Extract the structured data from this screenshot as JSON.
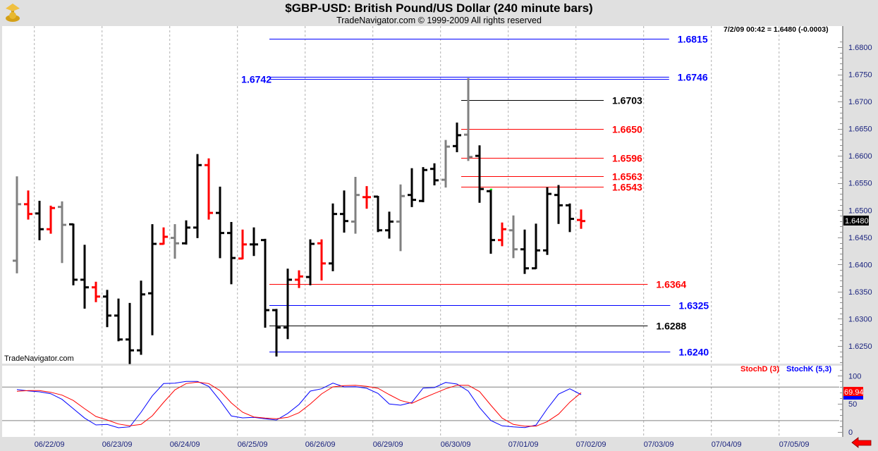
{
  "header": {
    "title": "$GBP-USD:  British Pound/US Dollar  (240 minute bars)",
    "subtitle": "TradeNavigator.com © 1999-2009 All rights reserved",
    "readout": "7/2/09 00:42 = 1.6480 (-0.0003)",
    "watermark": "TradeNavigator.com",
    "logo_icon": "gold-trophy-icon"
  },
  "colors": {
    "up_bar": "#000000",
    "gray_bar": "#808080",
    "red_bar": "#ff0000",
    "blue_level": "#0000ff",
    "red_level": "#ff0000",
    "black_level": "#000000",
    "stoch_k": "#0000ff",
    "stoch_d": "#ff0000"
  },
  "chart_data": [
    {
      "type": "ohlc",
      "title": "$GBP-USD:  British Pound/US Dollar  (240 minute bars)",
      "ylim": [
        1.6215,
        1.682
      ],
      "y_ticks": [
        "1.6250",
        "1.6300",
        "1.6350",
        "1.6400",
        "1.6450",
        "1.6500",
        "1.6550",
        "1.6600",
        "1.6650",
        "1.6700",
        "1.6750",
        "1.6800"
      ],
      "x_ticks": [
        "06/22/09",
        "06/23/09",
        "06/24/09",
        "06/25/09",
        "06/26/09",
        "06/29/09",
        "06/30/09",
        "07/01/09",
        "07/02/09",
        "07/03/09",
        "07/04/09",
        "07/05/09"
      ],
      "bars_per_day": 6,
      "grid": "vertical dashed",
      "last_price": "1.6480",
      "bars": [
        {
          "o": 1.6407,
          "h": 1.6561,
          "l": 1.6385,
          "c": 1.6511,
          "color": "gray"
        },
        {
          "o": 1.6511,
          "h": 1.6535,
          "l": 1.6484,
          "c": 1.6493,
          "color": "red"
        },
        {
          "o": 1.6494,
          "h": 1.6516,
          "l": 1.6446,
          "c": 1.6465,
          "color": "black"
        },
        {
          "o": 1.6465,
          "h": 1.6507,
          "l": 1.6458,
          "c": 1.6504,
          "color": "red"
        },
        {
          "o": 1.6506,
          "h": 1.6515,
          "l": 1.6404,
          "c": 1.6473,
          "color": "gray"
        },
        {
          "o": 1.6474,
          "h": 1.6474,
          "l": 1.6363,
          "c": 1.6372,
          "color": "black"
        },
        {
          "o": 1.6372,
          "h": 1.6435,
          "l": 1.632,
          "c": 1.6358,
          "color": "black"
        },
        {
          "o": 1.6358,
          "h": 1.6367,
          "l": 1.6332,
          "c": 1.6341,
          "color": "red"
        },
        {
          "o": 1.6341,
          "h": 1.6352,
          "l": 1.6286,
          "c": 1.6306,
          "color": "black"
        },
        {
          "o": 1.6306,
          "h": 1.6336,
          "l": 1.626,
          "c": 1.6262,
          "color": "black"
        },
        {
          "o": 1.6262,
          "h": 1.6328,
          "l": 1.6218,
          "c": 1.6242,
          "color": "black"
        },
        {
          "o": 1.6242,
          "h": 1.6369,
          "l": 1.6235,
          "c": 1.6345,
          "color": "black"
        },
        {
          "o": 1.6347,
          "h": 1.6473,
          "l": 1.6271,
          "c": 1.6438,
          "color": "black"
        },
        {
          "o": 1.6438,
          "h": 1.6467,
          "l": 1.6438,
          "c": 1.6451,
          "color": "red"
        },
        {
          "o": 1.6449,
          "h": 1.6473,
          "l": 1.6412,
          "c": 1.6439,
          "color": "gray"
        },
        {
          "o": 1.6439,
          "h": 1.648,
          "l": 1.6438,
          "c": 1.6468,
          "color": "black"
        },
        {
          "o": 1.6468,
          "h": 1.6602,
          "l": 1.645,
          "c": 1.6583,
          "color": "black"
        },
        {
          "o": 1.6583,
          "h": 1.6594,
          "l": 1.6484,
          "c": 1.6495,
          "color": "red"
        },
        {
          "o": 1.6495,
          "h": 1.6542,
          "l": 1.6413,
          "c": 1.6458,
          "color": "black"
        },
        {
          "o": 1.6458,
          "h": 1.6477,
          "l": 1.6365,
          "c": 1.6412,
          "color": "black"
        },
        {
          "o": 1.6411,
          "h": 1.6463,
          "l": 1.6411,
          "c": 1.6437,
          "color": "red"
        },
        {
          "o": 1.6437,
          "h": 1.6467,
          "l": 1.6417,
          "c": 1.6437,
          "color": "black"
        },
        {
          "o": 1.6445,
          "h": 1.6446,
          "l": 1.6285,
          "c": 1.6316,
          "color": "black"
        },
        {
          "o": 1.6316,
          "h": 1.6317,
          "l": 1.6232,
          "c": 1.6284,
          "color": "black"
        },
        {
          "o": 1.6284,
          "h": 1.6391,
          "l": 1.6264,
          "c": 1.6372,
          "color": "black"
        },
        {
          "o": 1.6372,
          "h": 1.6388,
          "l": 1.6358,
          "c": 1.6378,
          "color": "red"
        },
        {
          "o": 1.6377,
          "h": 1.6445,
          "l": 1.6363,
          "c": 1.6438,
          "color": "black"
        },
        {
          "o": 1.6439,
          "h": 1.6445,
          "l": 1.6372,
          "c": 1.6402,
          "color": "red"
        },
        {
          "o": 1.6402,
          "h": 1.6511,
          "l": 1.6389,
          "c": 1.6493,
          "color": "black"
        },
        {
          "o": 1.6493,
          "h": 1.6535,
          "l": 1.646,
          "c": 1.648,
          "color": "black"
        },
        {
          "o": 1.6479,
          "h": 1.656,
          "l": 1.6458,
          "c": 1.6528,
          "color": "gray"
        },
        {
          "o": 1.6524,
          "h": 1.6543,
          "l": 1.6504,
          "c": 1.6524,
          "color": "red"
        },
        {
          "o": 1.6525,
          "h": 1.6525,
          "l": 1.6461,
          "c": 1.6463,
          "color": "black"
        },
        {
          "o": 1.6463,
          "h": 1.6496,
          "l": 1.6449,
          "c": 1.6479,
          "color": "black"
        },
        {
          "o": 1.6479,
          "h": 1.6546,
          "l": 1.6426,
          "c": 1.6526,
          "color": "gray"
        },
        {
          "o": 1.6528,
          "h": 1.6576,
          "l": 1.6507,
          "c": 1.6519,
          "color": "black"
        },
        {
          "o": 1.6517,
          "h": 1.6578,
          "l": 1.6516,
          "c": 1.6574,
          "color": "black"
        },
        {
          "o": 1.6576,
          "h": 1.6585,
          "l": 1.6547,
          "c": 1.6555,
          "color": "black"
        },
        {
          "o": 1.6556,
          "h": 1.6628,
          "l": 1.6543,
          "c": 1.6617,
          "color": "gray"
        },
        {
          "o": 1.6618,
          "h": 1.666,
          "l": 1.6608,
          "c": 1.6638,
          "color": "black"
        },
        {
          "o": 1.6639,
          "h": 1.6742,
          "l": 1.6592,
          "c": 1.6598,
          "color": "gray"
        },
        {
          "o": 1.66,
          "h": 1.6618,
          "l": 1.6515,
          "c": 1.6539,
          "color": "black"
        },
        {
          "o": 1.6535,
          "h": 1.6537,
          "l": 1.6421,
          "c": 1.6445,
          "color": "black"
        },
        {
          "o": 1.6445,
          "h": 1.6476,
          "l": 1.6435,
          "c": 1.6465,
          "color": "red"
        },
        {
          "o": 1.6463,
          "h": 1.6489,
          "l": 1.6413,
          "c": 1.6428,
          "color": "gray"
        },
        {
          "o": 1.6428,
          "h": 1.6463,
          "l": 1.6384,
          "c": 1.6393,
          "color": "black"
        },
        {
          "o": 1.6393,
          "h": 1.6474,
          "l": 1.6393,
          "c": 1.6426,
          "color": "black"
        },
        {
          "o": 1.6426,
          "h": 1.6541,
          "l": 1.6419,
          "c": 1.653,
          "color": "black"
        },
        {
          "o": 1.6528,
          "h": 1.6545,
          "l": 1.6476,
          "c": 1.6509,
          "color": "black"
        },
        {
          "o": 1.6509,
          "h": 1.6511,
          "l": 1.6461,
          "c": 1.6484,
          "color": "black"
        },
        {
          "o": 1.6482,
          "h": 1.65,
          "l": 1.6467,
          "c": 1.648,
          "color": "red"
        }
      ],
      "levels": [
        {
          "value": 1.6815,
          "label": "1.6815",
          "color": "blue",
          "from_bar": 23,
          "to_bar": 57.8,
          "label_side": "right"
        },
        {
          "value": 1.6746,
          "label": "1.6746",
          "color": "blue",
          "from_bar": 23,
          "to_bar": 57.8,
          "label_side": "right"
        },
        {
          "value": 1.6742,
          "label": "1.6742",
          "color": "blue",
          "from_bar": 23,
          "to_bar": 57.8,
          "label_side": "left"
        },
        {
          "value": 1.6703,
          "label": "1.6703",
          "color": "black",
          "from_bar": 40,
          "to_bar": 52,
          "label_side": "right"
        },
        {
          "value": 1.665,
          "label": "1.6650",
          "color": "red",
          "from_bar": 40,
          "to_bar": 52,
          "label_side": "right"
        },
        {
          "value": 1.6596,
          "label": "1.6596",
          "color": "red",
          "from_bar": 40,
          "to_bar": 52,
          "label_side": "right"
        },
        {
          "value": 1.6563,
          "label": "1.6563",
          "color": "red",
          "from_bar": 40,
          "to_bar": 52,
          "label_side": "right"
        },
        {
          "value": 1.6543,
          "label": "1.6543",
          "color": "red",
          "from_bar": 40,
          "to_bar": 52,
          "label_side": "right"
        },
        {
          "value": 1.6364,
          "label": "1.6364",
          "color": "red",
          "from_bar": 23,
          "to_bar": 55.9,
          "label_side": "right"
        },
        {
          "value": 1.6325,
          "label": "1.6325",
          "color": "blue",
          "from_bar": 23,
          "to_bar": 57.9,
          "label_side": "right"
        },
        {
          "value": 1.6288,
          "label": "1.6288",
          "color": "black",
          "from_bar": 23,
          "to_bar": 55.9,
          "label_side": "right"
        },
        {
          "value": 1.624,
          "label": "1.6240",
          "color": "blue",
          "from_bar": 23,
          "to_bar": 57.9,
          "label_side": "right"
        }
      ]
    },
    {
      "type": "line",
      "ylim": [
        0,
        100
      ],
      "y_ticks": [
        "0",
        "50",
        "100"
      ],
      "reference_lines": [
        20,
        80
      ],
      "legend": [
        "StochD (3)",
        "StochK (5,3)"
      ],
      "legend_placement": "top-right",
      "last_d_label": "69.94",
      "series": [
        {
          "name": "StochK (5,3)",
          "color": "blue",
          "values": [
            75.6,
            73.1,
            71.4,
            68.1,
            58.0,
            41.3,
            24.5,
            12.3,
            13.2,
            7.3,
            8.9,
            35.0,
            64.3,
            86.2,
            86.9,
            89.9,
            89.9,
            81.1,
            56.0,
            28.3,
            24.9,
            25.8,
            23.3,
            21.1,
            32.8,
            48.8,
            72.7,
            76.9,
            86.9,
            80.3,
            80.6,
            77.7,
            68.6,
            49.7,
            47.5,
            52.6,
            78.1,
            79.0,
            88.2,
            85.3,
            72.7,
            43.4,
            20.3,
            10.7,
            8.9,
            7.7,
            11.9,
            41.3,
            67.3,
            76.9,
            66.4
          ]
        },
        {
          "name": "StochD (3)",
          "color": "red",
          "values": [
            72.3,
            73.6,
            73.6,
            70.6,
            65.5,
            56.0,
            41.3,
            27.4,
            21.1,
            14.0,
            10.7,
            13.2,
            28.7,
            52.6,
            74.8,
            86.2,
            88.7,
            86.2,
            73.6,
            51.7,
            35.0,
            26.5,
            24.5,
            23.3,
            25.8,
            34.1,
            49.7,
            67.7,
            80.3,
            82.4,
            83.1,
            81.1,
            77.7,
            66.4,
            56.0,
            50.9,
            60.1,
            68.6,
            76.9,
            83.1,
            83.1,
            71.8,
            47.5,
            24.5,
            13.2,
            10.1,
            10.1,
            18.2,
            31.6,
            53.0,
            69.9
          ]
        }
      ]
    }
  ]
}
